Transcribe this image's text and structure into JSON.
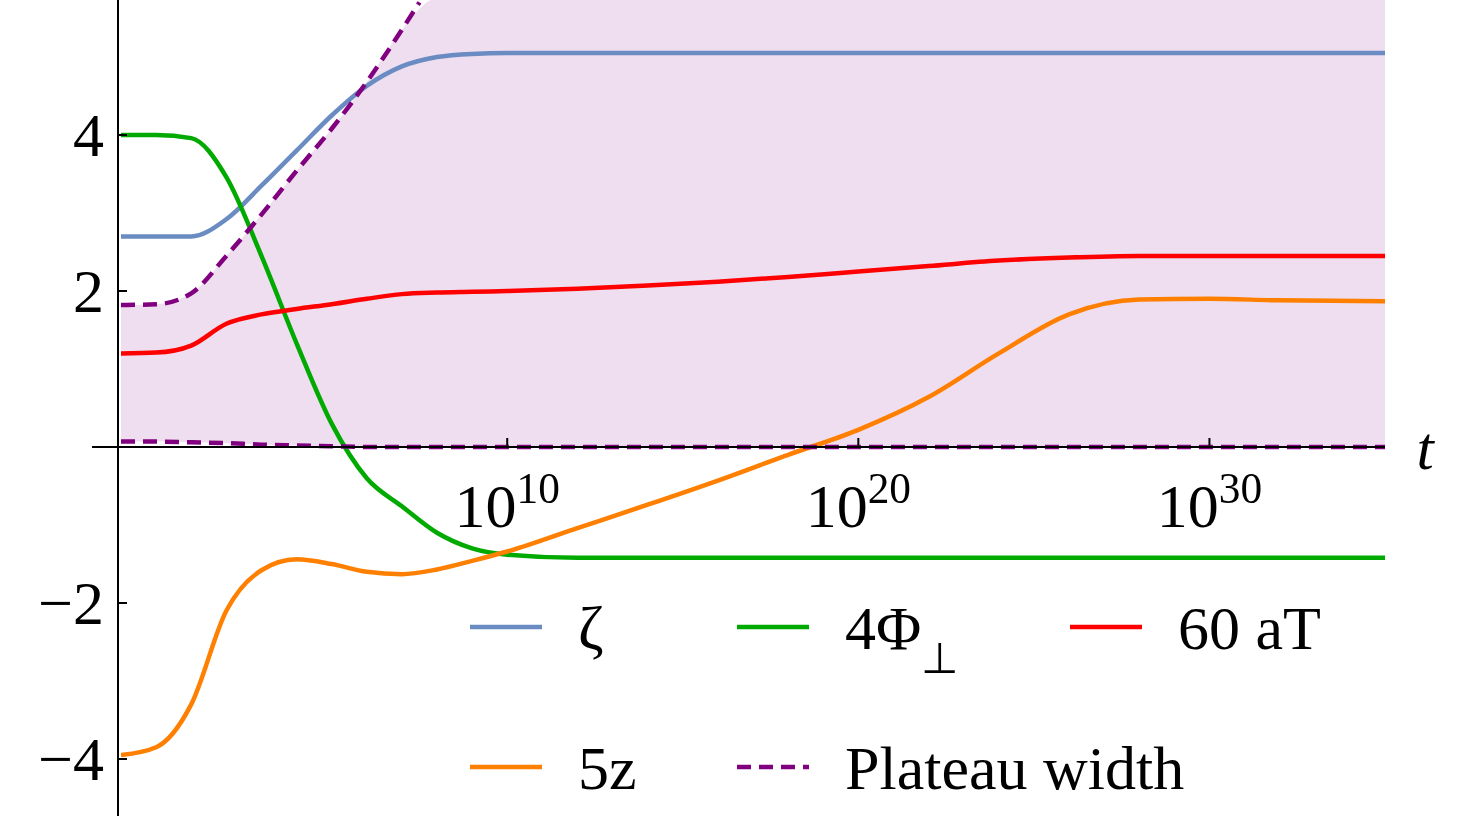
{
  "chart_data": {
    "type": "line",
    "xlabel": "t",
    "log": "x",
    "x": [
      0.1,
      1,
      10,
      100,
      1000,
      10000,
      100000,
      1000000,
      10000000,
      100000000,
      1000000000,
      10000000000.0,
      1000000000000.0,
      100000000000000.0,
      1e+16,
      1e+18,
      1e+20,
      1e+22,
      1e+24,
      1e+26,
      1e+28,
      1e+30,
      1e+32,
      1e+35
    ],
    "xlim": [
      0.1,
      1e+35
    ],
    "xticks": [
      {
        "value": 10000000000.0,
        "label": "10$^{10}$"
      },
      {
        "value": 1e+20,
        "label": "10$^{20}$"
      },
      {
        "value": 1e+30,
        "label": "10$^{30}$"
      }
    ],
    "ylim": [
      -4.75,
      5.75
    ],
    "yticks": [
      {
        "value": -4,
        "label": "−4"
      },
      {
        "value": -2,
        "label": "−2"
      },
      2,
      4
    ],
    "grid": false,
    "legend": "bottom right",
    "line_style": "solid",
    "marker": "none",
    "series": [
      {
        "name": "ζ",
        "color": "#6a8cc2",
        "values": [
          2.7,
          2.7,
          2.7,
          2.92,
          3.35,
          3.8,
          4.25,
          4.63,
          4.88,
          5.0,
          5.04,
          5.05,
          5.05,
          5.05,
          5.05,
          5.05,
          5.05,
          5.05,
          5.05,
          5.05,
          5.05,
          5.05,
          5.05,
          5.05
        ]
      },
      {
        "name": "4Φ$_{⊥}$",
        "color": "#00aa00",
        "values": [
          4.0,
          4.0,
          3.96,
          3.46,
          2.45,
          1.33,
          0.3,
          -0.4,
          -0.76,
          -1.1,
          -1.3,
          -1.38,
          -1.42,
          -1.42,
          -1.42,
          -1.42,
          -1.42,
          -1.42,
          -1.42,
          -1.42,
          -1.42,
          -1.42,
          -1.42,
          -1.42
        ]
      },
      {
        "name": "60 aT",
        "color": "#ff0000",
        "values": [
          1.2,
          1.21,
          1.3,
          1.58,
          1.7,
          1.77,
          1.83,
          1.9,
          1.96,
          1.98,
          1.99,
          2.0,
          2.03,
          2.07,
          2.12,
          2.18,
          2.25,
          2.32,
          2.39,
          2.43,
          2.45,
          2.45,
          2.45,
          2.45
        ]
      },
      {
        "name": "5z",
        "color": "#ff7f00",
        "values": [
          -3.95,
          -3.85,
          -3.3,
          -2.1,
          -1.58,
          -1.44,
          -1.5,
          -1.6,
          -1.63,
          -1.57,
          -1.46,
          -1.34,
          -1.04,
          -0.74,
          -0.43,
          -0.1,
          0.22,
          0.64,
          1.2,
          1.7,
          1.89,
          1.9,
          1.88,
          1.87
        ]
      },
      {
        "name": "Plateau width",
        "color": "#800080",
        "line_style": "dashed",
        "x": [
          0.1,
          1,
          10,
          100,
          1000,
          10000,
          100000,
          1000000,
          10000000,
          31622777
        ],
        "values": [
          1.82,
          1.83,
          1.97,
          2.45,
          2.98,
          3.54,
          4.08,
          4.68,
          5.35,
          5.7
        ]
      },
      {
        "color": "#800080",
        "line_style": "dashed",
        "values": [
          0.07,
          0.07,
          0.06,
          0.05,
          0.03,
          0.02,
          0.01,
          0,
          0,
          0,
          0,
          0,
          0,
          0,
          0,
          0,
          0,
          0,
          0,
          0,
          0,
          0,
          0,
          0
        ],
        "lower": [
          0.07,
          0.07,
          0.06,
          0.05,
          0.03,
          0.02,
          0.01,
          0,
          0,
          0,
          0,
          0,
          0,
          0,
          0,
          0,
          0,
          0,
          0,
          0,
          0,
          0,
          0,
          0
        ],
        "upper": [
          1.82,
          1.83,
          1.97,
          2.45,
          2.98,
          3.54,
          4.08,
          4.68,
          5.35,
          5.75,
          5.75,
          5.75,
          5.75,
          5.75,
          5.75,
          5.75,
          5.75,
          5.75,
          5.75,
          5.75,
          5.75,
          5.75,
          5.75,
          5.75
        ]
      }
    ]
  }
}
